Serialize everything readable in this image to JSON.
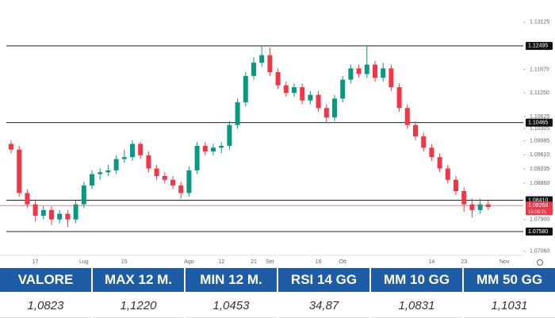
{
  "chart_data": {
    "type": "candlestick",
    "categories": [
      null,
      null,
      null,
      "17",
      null,
      null,
      null,
      null,
      null,
      "Lug",
      null,
      null,
      null,
      null,
      "15",
      null,
      null,
      null,
      null,
      null,
      null,
      null,
      "Ago",
      null,
      null,
      null,
      "12",
      null,
      null,
      null,
      "21",
      null,
      "Set",
      null,
      null,
      null,
      null,
      null,
      "16",
      null,
      null,
      "Ott",
      null,
      null,
      null,
      null,
      null,
      null,
      null,
      null,
      null,
      null,
      "14",
      null,
      null,
      null,
      "23",
      null,
      null,
      null,
      null,
      "Nov"
    ],
    "open": [
      1.099,
      1.0975,
      1.086,
      1.083,
      1.08,
      1.0815,
      1.079,
      1.0805,
      1.079,
      1.083,
      1.088,
      1.091,
      1.0915,
      1.092,
      1.095,
      1.0955,
      1.099,
      1.096,
      1.0925,
      1.0905,
      1.0895,
      1.088,
      1.086,
      1.092,
      1.0985,
      1.097,
      1.098,
      1.0985,
      1.104,
      1.11,
      1.117,
      1.1205,
      1.1225,
      1.118,
      1.1145,
      1.1125,
      1.114,
      1.1105,
      1.112,
      1.1085,
      1.106,
      1.111,
      1.116,
      1.119,
      1.1175,
      1.12,
      1.1165,
      1.119,
      1.114,
      1.1085,
      1.104,
      1.101,
      1.098,
      1.0955,
      1.0925,
      1.0895,
      1.0865,
      1.083,
      1.0815,
      1.083,
      null,
      null
    ],
    "high": [
      1.1,
      1.0985,
      1.087,
      1.084,
      1.0825,
      1.0825,
      1.0815,
      1.0815,
      1.084,
      1.089,
      1.092,
      1.0925,
      1.0935,
      1.096,
      1.0975,
      1.1,
      1.0995,
      1.097,
      1.0935,
      1.0915,
      1.0905,
      1.089,
      1.093,
      1.0995,
      1.0995,
      1.099,
      1.0995,
      1.105,
      1.111,
      1.118,
      1.122,
      1.125,
      1.1245,
      1.119,
      1.1155,
      1.115,
      1.115,
      1.113,
      1.113,
      1.1095,
      1.112,
      1.117,
      1.12,
      1.12,
      1.125,
      1.121,
      1.1205,
      1.12,
      1.115,
      1.1095,
      1.105,
      1.102,
      1.099,
      1.0965,
      1.0935,
      1.0905,
      1.0875,
      1.0845,
      1.0845,
      1.084,
      null,
      null
    ],
    "low": [
      1.0965,
      1.085,
      1.082,
      1.0785,
      1.079,
      1.0775,
      1.078,
      1.077,
      1.078,
      1.082,
      1.087,
      1.0895,
      1.0905,
      1.091,
      1.094,
      1.0945,
      1.095,
      1.0915,
      1.0895,
      1.0885,
      1.087,
      1.0845,
      1.085,
      1.091,
      1.096,
      1.096,
      1.0965,
      1.0975,
      1.103,
      1.109,
      1.116,
      1.1195,
      1.117,
      1.1135,
      1.1115,
      1.1115,
      1.1095,
      1.1095,
      1.1075,
      1.1045,
      1.105,
      1.11,
      1.115,
      1.1165,
      1.1165,
      1.1155,
      1.1155,
      1.113,
      1.1075,
      1.103,
      1.1,
      1.097,
      1.0945,
      1.0915,
      1.0885,
      1.0855,
      1.081,
      1.0795,
      1.0805,
      1.0815,
      null,
      null
    ],
    "close": [
      1.0975,
      1.086,
      1.083,
      1.08,
      1.0815,
      1.079,
      1.0805,
      1.079,
      1.083,
      1.088,
      1.091,
      1.0915,
      1.092,
      1.095,
      1.0955,
      1.099,
      1.096,
      1.0925,
      1.0905,
      1.0895,
      1.088,
      1.086,
      1.092,
      1.0985,
      1.097,
      1.098,
      1.0985,
      1.104,
      1.11,
      1.117,
      1.1205,
      1.1225,
      1.118,
      1.1145,
      1.1125,
      1.114,
      1.1105,
      1.112,
      1.1085,
      1.106,
      1.111,
      1.116,
      1.119,
      1.1175,
      1.12,
      1.1165,
      1.119,
      1.114,
      1.1085,
      1.104,
      1.101,
      1.098,
      1.0955,
      1.0925,
      1.0895,
      1.0865,
      1.083,
      1.0815,
      1.083,
      1.0823,
      null,
      null
    ],
    "up_color": "#089981",
    "down_color": "#f23645",
    "ylim": [
      1.0695,
      1.1371
    ],
    "yticks": [
      1.13125,
      1.11875,
      {
        "value": 1.1125,
        "label": "1.11250"
      },
      1.10625,
      1.10305,
      1.09985,
      {
        "value": 1.0961,
        "label": "1.09610"
      },
      1.09235,
      {
        "value": 1.0886,
        "label": "1.08860"
      },
      {
        "value": 1.079,
        "label": "1.07900"
      },
      {
        "value": 1.0706,
        "label": "1.07060"
      }
    ],
    "levels": [
      1.12495,
      1.10465,
      {
        "value": 1.0841,
        "label": "1.08410"
      },
      {
        "value": 1.0758,
        "label": "1.07580"
      }
    ],
    "current_price": 1.08268,
    "countdown": "15:09:21",
    "grid": false
  },
  "table": {
    "headers": [
      "VALORE",
      "MAX 12 M.",
      "MIN 12 M.",
      "RSI 14 GG",
      "MM 10 GG",
      "MM 50 GG"
    ],
    "rows": [
      [
        "1,0823",
        "1,1220",
        "1,0453",
        "34,87",
        "1,0831",
        "1,1031"
      ]
    ]
  }
}
